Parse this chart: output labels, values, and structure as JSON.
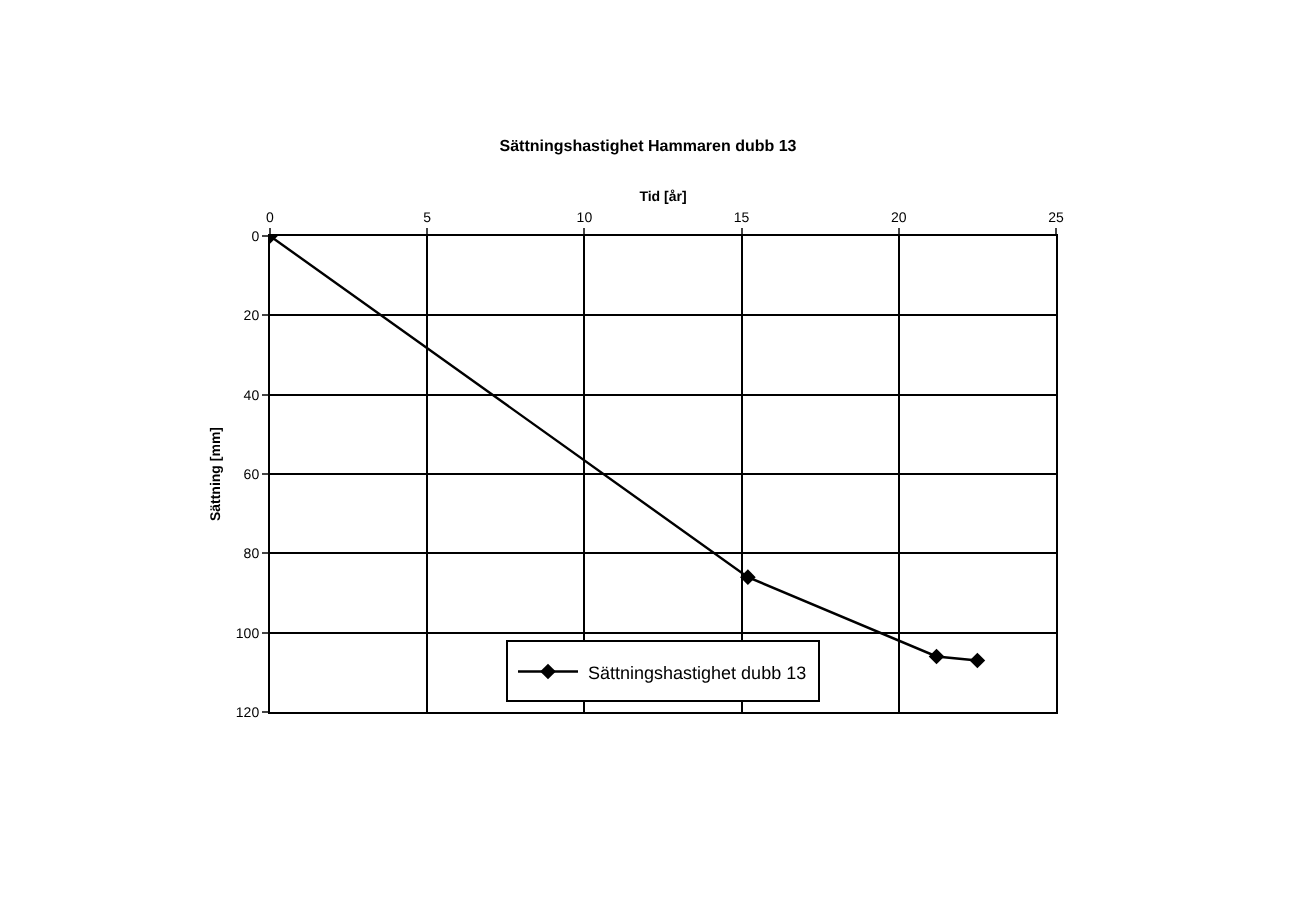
{
  "chart_data": {
    "type": "line",
    "title": "Sättningshastighet Hammaren dubb 13",
    "xlabel": "Tid [år]",
    "ylabel": "Sättning [mm]",
    "x": [
      0,
      15.2,
      21.2,
      22.5
    ],
    "series": [
      {
        "name": "Sättningshastighet dubb 13",
        "color": "#000000",
        "values": [
          0,
          86,
          106,
          107
        ]
      }
    ],
    "xlim": [
      0,
      25
    ],
    "xticks": [
      0,
      5,
      10,
      15,
      20,
      25
    ],
    "ylim": [
      120,
      0
    ],
    "yticks": [
      0,
      20,
      40,
      60,
      80,
      100,
      120
    ],
    "grid": true,
    "legend": "bottom",
    "marker": "diamond",
    "line_style": "solid"
  }
}
